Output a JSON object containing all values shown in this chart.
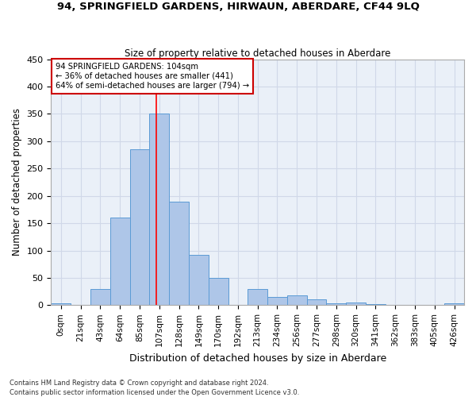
{
  "title": "94, SPRINGFIELD GARDENS, HIRWAUN, ABERDARE, CF44 9LQ",
  "subtitle": "Size of property relative to detached houses in Aberdare",
  "xlabel": "Distribution of detached houses by size in Aberdare",
  "ylabel": "Number of detached properties",
  "footnote1": "Contains HM Land Registry data © Crown copyright and database right 2024.",
  "footnote2": "Contains public sector information licensed under the Open Government Licence v3.0.",
  "bar_labels": [
    "0sqm",
    "21sqm",
    "43sqm",
    "64sqm",
    "85sqm",
    "107sqm",
    "128sqm",
    "149sqm",
    "170sqm",
    "192sqm",
    "213sqm",
    "234sqm",
    "256sqm",
    "277sqm",
    "298sqm",
    "320sqm",
    "341sqm",
    "362sqm",
    "383sqm",
    "405sqm",
    "426sqm"
  ],
  "bar_heights": [
    3,
    0,
    30,
    160,
    285,
    350,
    190,
    92,
    50,
    0,
    30,
    15,
    18,
    10,
    4,
    5,
    2,
    1,
    1,
    1,
    3
  ],
  "bar_color": "#aec6e8",
  "bar_edge_color": "#5b9bd5",
  "grid_color": "#d0d8e8",
  "background_color": "#eaf0f8",
  "annotation_line1": "94 SPRINGFIELD GARDENS: 104sqm",
  "annotation_line2": "← 36% of detached houses are smaller (441)",
  "annotation_line3": "64% of semi-detached houses are larger (794) →",
  "annotation_box_color": "#ffffff",
  "annotation_border_color": "#cc0000",
  "ylim": [
    0,
    450
  ],
  "yticks": [
    0,
    50,
    100,
    150,
    200,
    250,
    300,
    350,
    400,
    450
  ]
}
